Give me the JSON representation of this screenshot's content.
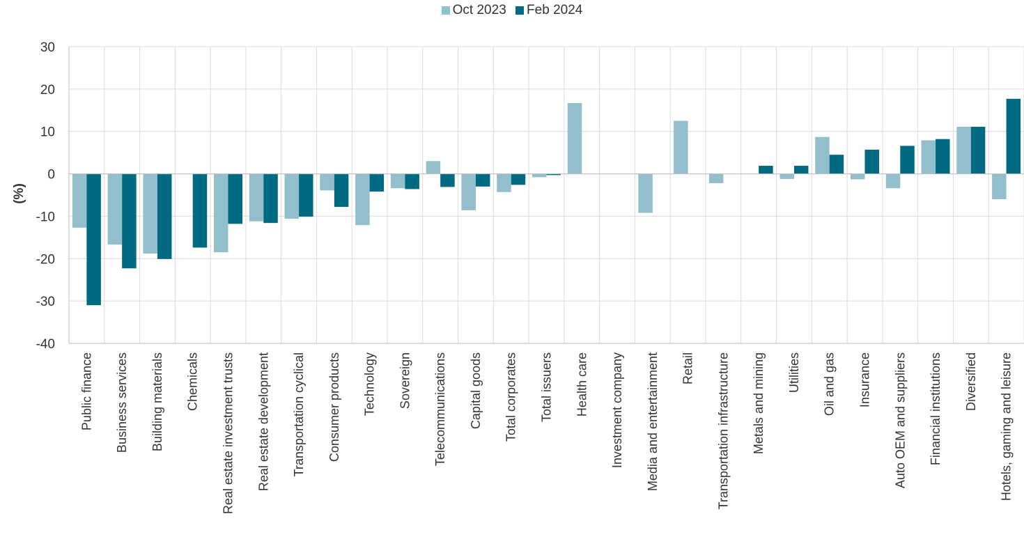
{
  "chart_data": {
    "type": "bar",
    "title": "",
    "xlabel": "",
    "ylabel": "(%)",
    "ylim": [
      -40,
      30
    ],
    "yticks": [
      30,
      20,
      10,
      0,
      -10,
      -20,
      -30,
      -40
    ],
    "grid": true,
    "legend_position": "top-center",
    "categories": [
      "Public finance",
      "Business services",
      "Building materials",
      "Chemicals",
      "Real estate investment trusts",
      "Real estate development",
      "Transportation cyclical",
      "Consumer products",
      "Technology",
      "Sovereign",
      "Telecommunications",
      "Capital goods",
      "Total corporates",
      "Total issuers",
      "Health care",
      "Investment company",
      "Media and entertainment",
      "Retail",
      "Transportation infrastructure",
      "Metals and mining",
      "Utilities",
      "Oil and gas",
      "Insurance",
      "Auto OEM and suppliers",
      "Financial institutions",
      "Diversified",
      "Hotels, gaming and leisure"
    ],
    "series": [
      {
        "name": "Oct 2023",
        "color": "#93bfcc",
        "values": [
          -12.7,
          -16.7,
          -18.8,
          0,
          -18.5,
          -11.2,
          -10.6,
          -3.9,
          -12.1,
          -3.4,
          3.0,
          -8.6,
          -4.3,
          -0.8,
          16.7,
          0,
          -9.2,
          12.5,
          -2.2,
          0,
          -1.2,
          8.7,
          -1.3,
          -3.4,
          7.9,
          11.1,
          -6.0
        ]
      },
      {
        "name": "Feb 2024",
        "color": "#006a83",
        "values": [
          -31.0,
          -22.3,
          -20.1,
          -17.4,
          -11.8,
          -11.6,
          -10.1,
          -7.8,
          -4.2,
          -3.6,
          -3.1,
          -3.0,
          -2.6,
          -0.3,
          0,
          0,
          0,
          0,
          0,
          1.9,
          1.9,
          4.5,
          5.7,
          6.6,
          8.2,
          11.1,
          17.7
        ]
      }
    ]
  }
}
